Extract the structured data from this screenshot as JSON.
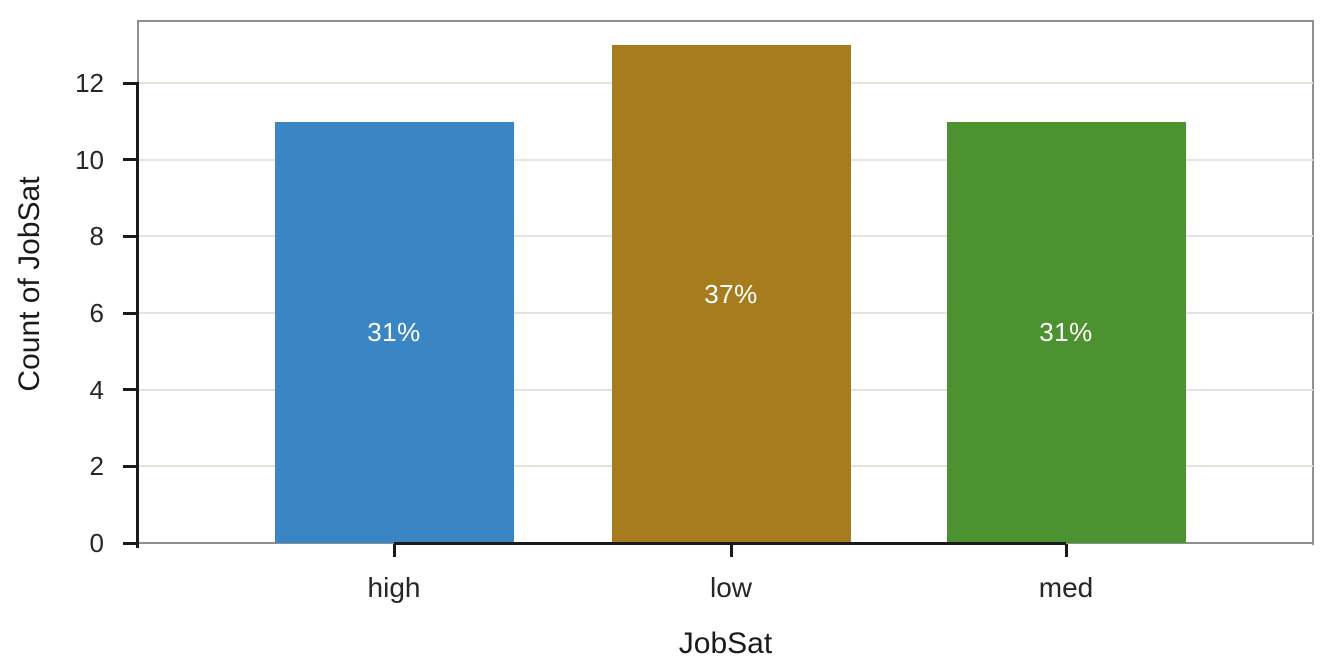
{
  "chart_data": {
    "type": "bar",
    "title": "",
    "xlabel": "JobSat",
    "ylabel": "Count of JobSat",
    "categories": [
      "high",
      "low",
      "med"
    ],
    "values": [
      11,
      13,
      11
    ],
    "bar_labels": [
      "31%",
      "37%",
      "31%"
    ],
    "bar_colors": [
      "#3a86c4",
      "#a67c1e",
      "#4d9230"
    ],
    "y_ticks": [
      0,
      2,
      4,
      6,
      8,
      10,
      12
    ],
    "ylim": [
      0,
      13.65
    ],
    "grid": "horizontal",
    "legend": "none",
    "style": {
      "grid_color": "#e8e2d8",
      "plot_border_color": "#8f8f8f",
      "axis_spine_color": "#1a1a1a",
      "tick_text_color": "#262626",
      "bar_label_color": "#ffffff",
      "background_color": "#ffffff"
    }
  }
}
